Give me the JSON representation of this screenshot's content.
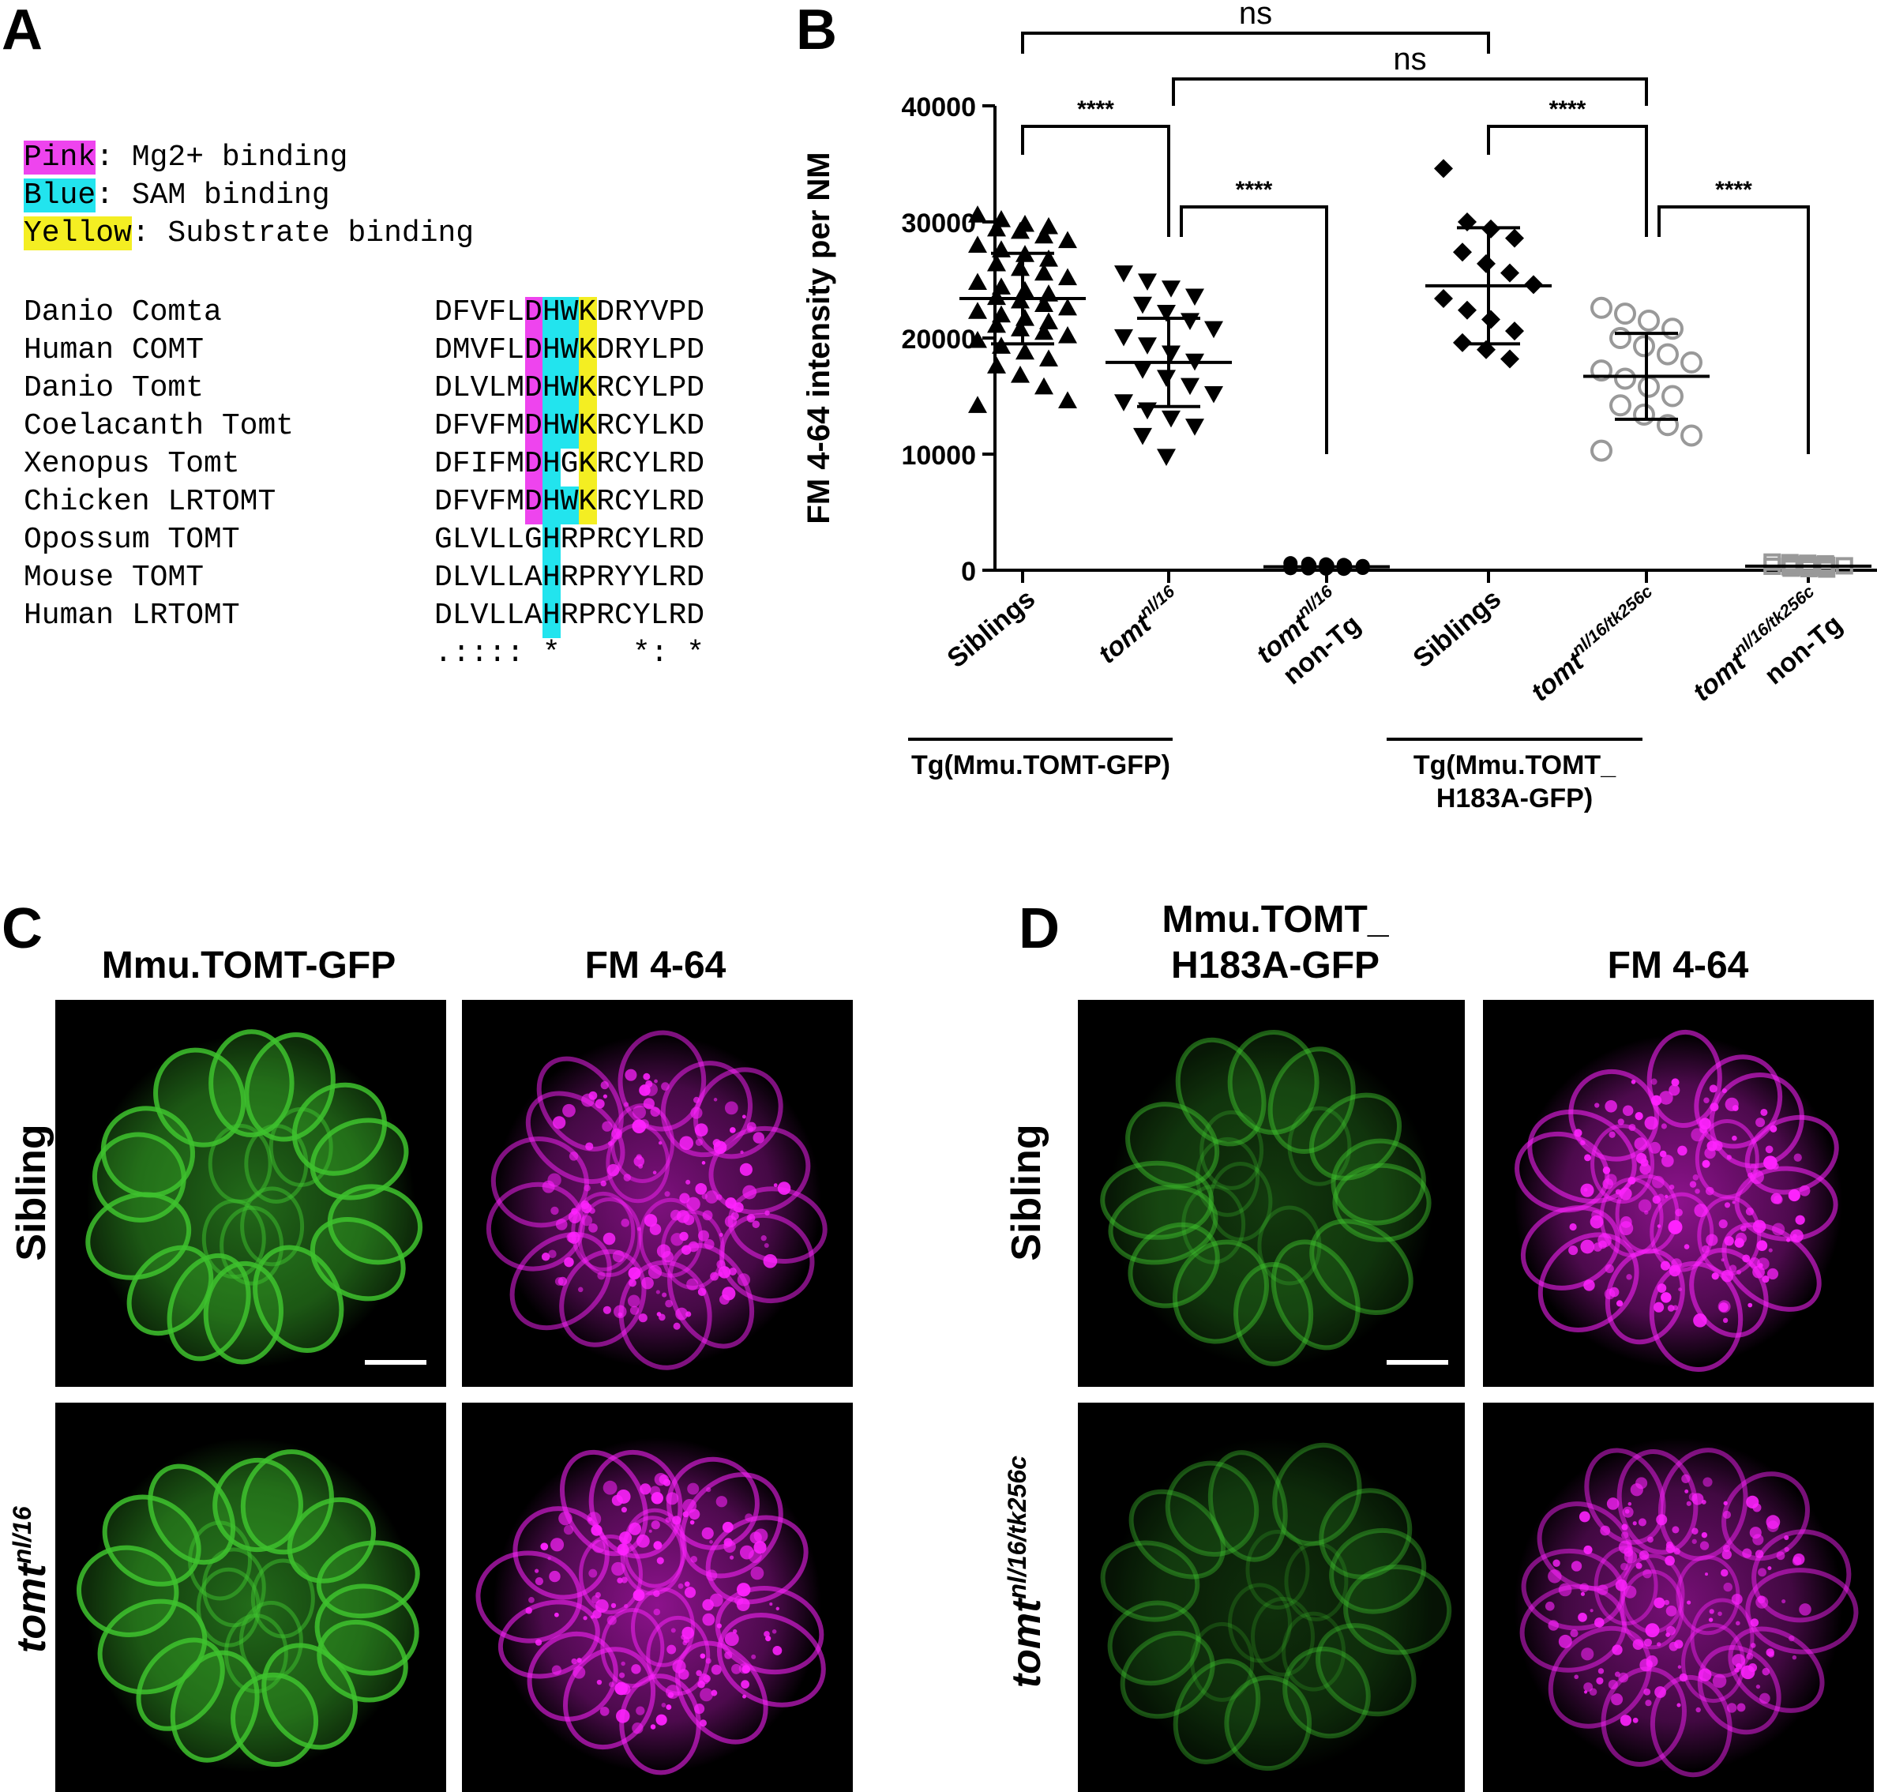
{
  "panel_letters": {
    "a": "A",
    "b": "B",
    "c": "C",
    "d": "D"
  },
  "panelA": {
    "legend": [
      {
        "key": "Pink",
        "rest": ": Mg2+ binding",
        "color": "#ee44ee"
      },
      {
        "key": "Blue",
        "rest": ": SAM binding",
        "color": "#22e4ee"
      },
      {
        "key": "Yellow",
        "rest": ": Substrate binding",
        "color": "#f4ee22"
      }
    ],
    "sequences": [
      {
        "name": "Danio Comta",
        "seq": "DFVFLDHWKDRYVPD"
      },
      {
        "name": "Human COMT",
        "seq": "DMVFLDHWKDRYLPD"
      },
      {
        "name": "Danio Tomt",
        "seq": "DLVLMDHWKRCYLPD"
      },
      {
        "name": "Coelacanth Tomt",
        "seq": "DFVFMDHWKRCYLKD"
      },
      {
        "name": "Xenopus Tomt",
        "seq": "DFIFMDHGKRCYLRD"
      },
      {
        "name": "Chicken LRTOMT",
        "seq": "DFVFMDHWKRCYLRD"
      },
      {
        "name": "Opossum TOMT",
        "seq": "GLVLLGHRPRCYLRD"
      },
      {
        "name": "Mouse TOMT",
        "seq": "DLVLLAHRPRYYLRD"
      },
      {
        "name": "Human LRTOMT",
        "seq": "DLVLLAHRPRCYLRD"
      }
    ],
    "consensus": ".:::: *    *: *"
  },
  "chart_data": {
    "type": "scatter",
    "ylabel": "FM 4-64 intensity per NM",
    "ylim": [
      0,
      40000
    ],
    "yticks": [
      "0",
      "10000",
      "20000",
      "30000",
      "40000"
    ],
    "categories": [
      "Siblings",
      "tomt nl/16",
      "tomt nl/16 non-Tg",
      "Siblings",
      "tomt nl/16/tk256c",
      "tomt nl/16/tk256c non-Tg"
    ],
    "xtick_labels": [
      {
        "main": "Siblings",
        "sup": "",
        "line2": ""
      },
      {
        "main": "tomt",
        "sup": "nl/16",
        "line2": ""
      },
      {
        "main": "tomt",
        "sup": "nl/16",
        "line2": "non-Tg"
      },
      {
        "main": "Siblings",
        "sup": "",
        "line2": ""
      },
      {
        "main": "tomt",
        "sup": "nl/16/tk256c",
        "line2": ""
      },
      {
        "main": "tomt",
        "sup": "nl/16/tk256c",
        "line2": "non-Tg"
      }
    ],
    "groups": [
      {
        "label": "Tg(Mmu.TOMT-GFP)",
        "members": [
          0,
          1
        ]
      },
      {
        "label_lines": [
          "Tg(Mmu.TOMT_",
          "H183A-GFP)"
        ],
        "members": [
          3,
          4
        ]
      }
    ],
    "series": [
      {
        "marker": "triangle-up",
        "color": "#000000",
        "mean": 23400,
        "sd": 3900,
        "values": [
          30600,
          30200,
          29800,
          29600,
          29400,
          29200,
          28800,
          28400,
          28000,
          27600,
          27200,
          26800,
          26400,
          26000,
          25600,
          25200,
          24800,
          24400,
          24100,
          23800,
          23500,
          23200,
          22900,
          22600,
          22300,
          22000,
          21700,
          21400,
          21100,
          20800,
          20500,
          20200,
          19800,
          19300,
          18800,
          18200,
          17600,
          16800,
          15800,
          14600,
          14200
        ]
      },
      {
        "marker": "triangle-down",
        "color": "#000000",
        "mean": 17900,
        "sd": 3800,
        "values": [
          25600,
          24900,
          24300,
          23600,
          22900,
          22200,
          21500,
          20800,
          20100,
          19400,
          18700,
          18000,
          17300,
          16600,
          15900,
          15200,
          14500,
          13800,
          13100,
          12400,
          11600,
          9800
        ]
      },
      {
        "marker": "circle",
        "color": "#000000",
        "mean": 300,
        "sd": 150,
        "values": [
          600,
          550,
          500,
          450,
          420,
          400,
          380,
          360,
          340,
          320,
          300,
          280,
          260,
          240,
          220,
          200,
          180,
          160,
          140,
          120
        ]
      },
      {
        "marker": "diamond",
        "color": "#000000",
        "mean": 24500,
        "sd": 5000,
        "values": [
          34600,
          30000,
          29400,
          28600,
          27400,
          26400,
          25600,
          24600,
          23400,
          22400,
          21600,
          20600,
          19600,
          19000,
          18200
        ]
      },
      {
        "marker": "circle-open",
        "color": "#999999",
        "mean": 16700,
        "sd": 3700,
        "values": [
          22600,
          22100,
          21500,
          20800,
          20000,
          19300,
          18600,
          17900,
          17200,
          16500,
          15800,
          15000,
          14200,
          13400,
          12500,
          11600,
          10300
        ]
      },
      {
        "marker": "square-open",
        "color": "#999999",
        "mean": 350,
        "sd": 200,
        "values": [
          700,
          650,
          600,
          550,
          500,
          460,
          420,
          380,
          340,
          300,
          260,
          220,
          180,
          140,
          100
        ]
      }
    ],
    "comparisons": [
      {
        "from": 0,
        "to": 1,
        "label": "****"
      },
      {
        "from": 1,
        "to": 2,
        "label": "****"
      },
      {
        "from": 3,
        "to": 4,
        "label": "****"
      },
      {
        "from": 4,
        "to": 5,
        "label": "****"
      },
      {
        "from": 0,
        "to": 3,
        "label": "ns"
      },
      {
        "from": 1,
        "to": 4,
        "label": "ns"
      }
    ]
  },
  "panelC": {
    "col_titles": [
      "Mmu.TOMT-GFP",
      "FM 4-64"
    ],
    "row_labels": [
      {
        "main": "Sibling",
        "sup": ""
      },
      {
        "main": "tomt",
        "sup": "nl/16"
      }
    ]
  },
  "panelD": {
    "col_titles": [
      "Mmu.TOMT_",
      "H183A-GFP",
      "FM 4-64"
    ],
    "row_labels": [
      {
        "main": "Sibling",
        "sup": ""
      },
      {
        "main": "tomt",
        "sup": "nl/16/tk256c"
      }
    ]
  },
  "colors": {
    "gfp": "#3ec22e",
    "fm": "#ff22ff",
    "pink": "#ee44ee",
    "blue": "#22e4ee",
    "yellow": "#f4ee22"
  }
}
